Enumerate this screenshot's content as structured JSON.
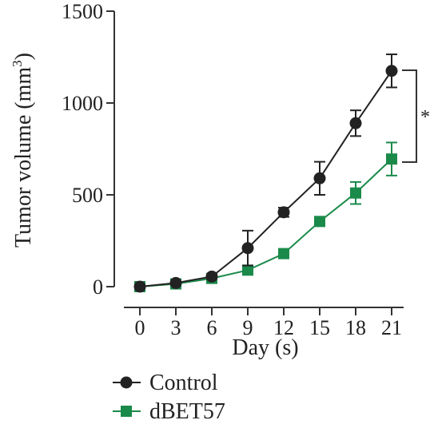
{
  "chart_data": {
    "type": "line",
    "x": [
      0,
      3,
      6,
      9,
      12,
      15,
      18,
      21
    ],
    "xlabel": "Day (s)",
    "ylabel": "Tumor volume (mm",
    "ylabel_sup": "3",
    "ylabel_close": ")",
    "xticks": [
      0,
      3,
      6,
      9,
      12,
      15,
      18,
      21
    ],
    "yticks": [
      0,
      500,
      1000,
      1500
    ],
    "ylim": [
      0,
      1500
    ],
    "series": [
      {
        "name": "Control",
        "color": "#222222",
        "marker": "circle",
        "values": [
          0,
          20,
          55,
          210,
          405,
          590,
          890,
          1175
        ],
        "err": [
          0,
          5,
          10,
          95,
          25,
          90,
          70,
          90
        ]
      },
      {
        "name": "dBET57",
        "color": "#1a8a4a",
        "marker": "square",
        "values": [
          0,
          15,
          45,
          90,
          180,
          355,
          510,
          695
        ],
        "err": [
          0,
          0,
          0,
          0,
          0,
          15,
          60,
          90
        ]
      }
    ],
    "annotation": "*",
    "legend": "bottom-left",
    "grid": false
  }
}
